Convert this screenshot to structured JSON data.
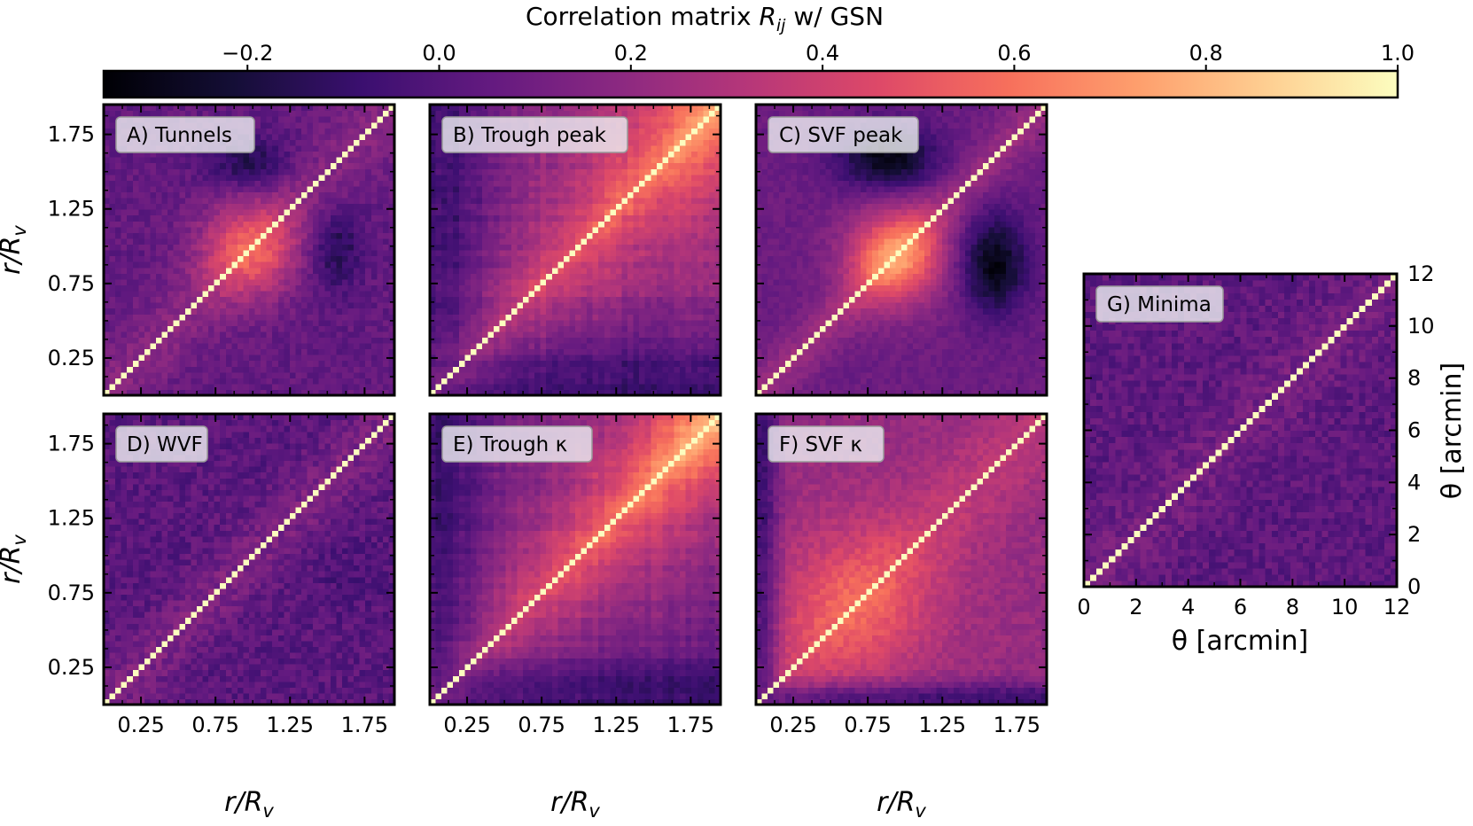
{
  "figure": {
    "title": "Correlation matrix R_ij w/ GSN",
    "title_main": "Correlation matrix ",
    "title_sym": "R",
    "title_sub": "ij",
    "title_rest": " w/ GSN"
  },
  "colorbar": {
    "colormap": "magma",
    "range": [
      -0.35,
      1.0
    ],
    "ticks": [
      "−0.2",
      "0.0",
      "0.2",
      "0.4",
      "0.6",
      "0.8",
      "1.0"
    ],
    "tick_values": [
      -0.2,
      0.0,
      0.2,
      0.4,
      0.6,
      0.8,
      1.0
    ]
  },
  "axes_labels": {
    "r_label": "r/R",
    "r_sub": "v",
    "theta_label": "θ [arcmin]",
    "r_ticks": [
      "0.25",
      "0.75",
      "1.25",
      "1.75"
    ],
    "r_tick_values": [
      0.25,
      0.75,
      1.25,
      1.75
    ],
    "r_range": [
      0.0,
      1.95
    ],
    "theta_ticks": [
      "0",
      "2",
      "4",
      "6",
      "8",
      "10",
      "12"
    ],
    "theta_tick_values": [
      0,
      2,
      4,
      6,
      8,
      10,
      12
    ],
    "theta_range": [
      0,
      12
    ]
  },
  "chart_data": [
    {
      "type": "heatmap",
      "id": "A",
      "title": "A) Tunnels",
      "xlabel": "r/R_v",
      "ylabel": "r/R_v",
      "grid_size": 50,
      "range": [
        0,
        1.95
      ],
      "pattern": "tunnels",
      "diagonal": 1.0
    },
    {
      "type": "heatmap",
      "id": "B",
      "title": "B) Trough peak",
      "xlabel": "r/R_v",
      "ylabel": "r/R_v",
      "grid_size": 50,
      "range": [
        0,
        1.95
      ],
      "pattern": "trough",
      "diagonal": 1.0
    },
    {
      "type": "heatmap",
      "id": "C",
      "title": "C) SVF peak",
      "xlabel": "r/R_v",
      "ylabel": "r/R_v",
      "grid_size": 50,
      "range": [
        0,
        1.95
      ],
      "pattern": "svfpeak",
      "diagonal": 1.0
    },
    {
      "type": "heatmap",
      "id": "D",
      "title": "D) WVF",
      "xlabel": "r/R_v",
      "ylabel": "r/R_v",
      "grid_size": 50,
      "range": [
        0,
        1.95
      ],
      "pattern": "wvf",
      "diagonal": 1.0
    },
    {
      "type": "heatmap",
      "id": "E",
      "title": "E) Trough κ",
      "xlabel": "r/R_v",
      "ylabel": "r/R_v",
      "grid_size": 50,
      "range": [
        0,
        1.95
      ],
      "pattern": "troughk",
      "diagonal": 1.0
    },
    {
      "type": "heatmap",
      "id": "F",
      "title": "F) SVF κ",
      "xlabel": "r/R_v",
      "ylabel": "r/R_v",
      "grid_size": 50,
      "range": [
        0,
        1.95
      ],
      "pattern": "svfk",
      "diagonal": 1.0
    },
    {
      "type": "heatmap",
      "id": "G",
      "title": "G) Minima",
      "xlabel": "θ [arcmin]",
      "ylabel": "θ [arcmin]",
      "grid_size": 50,
      "range": [
        0,
        12
      ],
      "pattern": "minima",
      "diagonal": 1.0
    }
  ]
}
